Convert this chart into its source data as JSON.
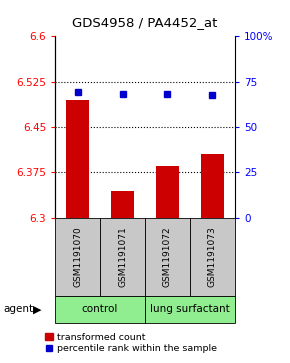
{
  "title": "GDS4958 / PA4452_at",
  "samples": [
    "GSM1191070",
    "GSM1191071",
    "GSM1191072",
    "GSM1191073"
  ],
  "bar_values": [
    6.495,
    6.345,
    6.385,
    6.405
  ],
  "dot_values": [
    6.508,
    6.505,
    6.505,
    6.503
  ],
  "bar_color": "#cc0000",
  "dot_color": "#0000cc",
  "ylim_left": [
    6.3,
    6.6
  ],
  "ylim_right": [
    0,
    100
  ],
  "yticks_left": [
    6.3,
    6.375,
    6.45,
    6.525,
    6.6
  ],
  "ytick_labels_left": [
    "6.3",
    "6.375",
    "6.45",
    "6.525",
    "6.6"
  ],
  "yticks_right": [
    0,
    25,
    50,
    75,
    100
  ],
  "ytick_labels_right": [
    "0",
    "25",
    "50",
    "75",
    "100%"
  ],
  "gridlines_at": [
    6.375,
    6.45,
    6.525
  ],
  "bar_bottom": 6.3,
  "gray_color": "#c8c8c8",
  "green_color": "#90ee90",
  "legend_bar_label": "transformed count",
  "legend_dot_label": "percentile rank within the sample"
}
